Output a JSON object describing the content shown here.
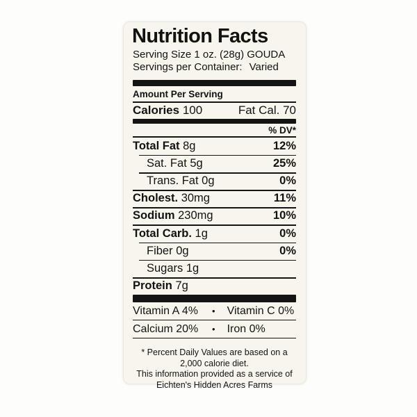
{
  "colors": {
    "label_background": "#f8f6ec",
    "bar_color": "#141414",
    "text_color": "#121212",
    "page_background": "#fdfdfc"
  },
  "label": {
    "title": "Nutrition Facts",
    "serving_size": "Serving Size 1 oz. (28g) GOUDA",
    "servings_label": "Servings per Container:",
    "servings_value": "Varied",
    "amount_per_serving": "Amount Per Serving",
    "calories": {
      "label": "Calories",
      "value": "100",
      "fat_cal_label": "Fat Cal.",
      "fat_cal_value": "70"
    },
    "dv_header": "% DV*",
    "nutrients": [
      {
        "name": "Total Fat",
        "amount": "8g",
        "dv": "12%"
      },
      {
        "name": "Sat. Fat",
        "amount": "5g",
        "dv": "25%"
      },
      {
        "name": "Trans. Fat",
        "amount": "0g",
        "dv": "0%"
      },
      {
        "name": "Cholest.",
        "amount": "30mg",
        "dv": "11%"
      },
      {
        "name": "Sodium",
        "amount": "230mg",
        "dv": "10%"
      },
      {
        "name": "Total Carb.",
        "amount": "1g",
        "dv": "0%"
      },
      {
        "name": "Fiber",
        "amount": "0g",
        "dv": "0%"
      },
      {
        "name": "Sugars",
        "amount": "1g",
        "dv": ""
      },
      {
        "name": "Protein",
        "amount": "7g",
        "dv": ""
      }
    ],
    "vitamins": [
      {
        "left": "Vitamin A 4%",
        "sep": "•",
        "right": "Vitamin C 0%"
      },
      {
        "left": "Calcium 20%",
        "sep": "•",
        "right": "Iron 0%"
      }
    ],
    "footnote": {
      "line1": "* Percent Daily Values are based on a",
      "line2": "2,000 calorie diet.",
      "line3": "This information provided as a service of",
      "line4": "Eichten's Hidden Acres Farms"
    }
  }
}
